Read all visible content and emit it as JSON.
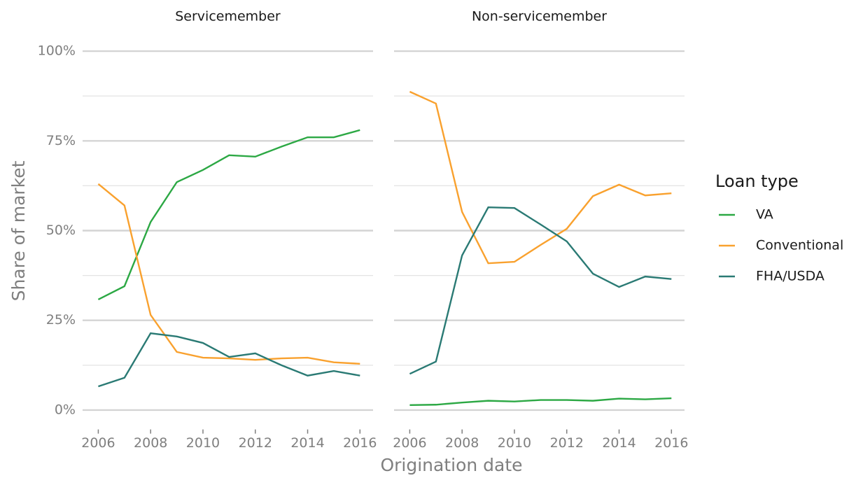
{
  "chart_data": {
    "type": "line",
    "xlabel": "Origination date",
    "ylabel": "Share of market",
    "legend_title": "Loan type",
    "x": [
      2006,
      2007,
      2008,
      2009,
      2010,
      2011,
      2012,
      2013,
      2014,
      2015,
      2016
    ],
    "xlim": [
      2005.4,
      2016.5
    ],
    "xticks": [
      2006,
      2008,
      2010,
      2012,
      2014,
      2016
    ],
    "ylim": [
      -5,
      105
    ],
    "yticks": [
      {
        "value": 0,
        "label": "0%"
      },
      {
        "value": 25,
        "label": "25%"
      },
      {
        "value": 50,
        "label": "50%"
      },
      {
        "value": 75,
        "label": "75%"
      },
      {
        "value": 100,
        "label": "100%"
      }
    ],
    "grid": true,
    "legend": "right",
    "panels": [
      {
        "title": "Servicemember",
        "series": [
          {
            "name": "VA",
            "color": "#2ca844",
            "values": [
              30.8,
              34.5,
              52.4,
              63.5,
              66.9,
              71,
              70.6,
              73.4,
              76,
              76,
              78
            ]
          },
          {
            "name": "Conventional",
            "color": "#f9a12e",
            "values": [
              63,
              57,
              26.5,
              16.2,
              14.6,
              14.4,
              14.0,
              14.4,
              14.6,
              13.3,
              12.9
            ]
          },
          {
            "name": "FHA/USDA",
            "color": "#2a7a74",
            "values": [
              6.6,
              9,
              21.4,
              20.5,
              18.7,
              14.8,
              15.8,
              12.5,
              9.6,
              10.9,
              9.6
            ]
          }
        ]
      },
      {
        "title": "Non-servicemember",
        "series": [
          {
            "name": "VA",
            "color": "#2ca844",
            "values": [
              1.4,
              1.5,
              2.1,
              2.6,
              2.4,
              2.8,
              2.8,
              2.6,
              3.2,
              3,
              3.3
            ]
          },
          {
            "name": "Conventional",
            "color": "#f9a12e",
            "values": [
              88.7,
              85.4,
              55.2,
              40.9,
              41.3,
              46,
              50.5,
              59.6,
              62.8,
              59.8,
              60.4
            ]
          },
          {
            "name": "FHA/USDA",
            "color": "#2a7a74",
            "values": [
              10.1,
              13.5,
              43.1,
              56.5,
              56.3,
              51.7,
              47,
              38,
              34.3,
              37.2,
              36.5
            ]
          }
        ]
      }
    ]
  }
}
